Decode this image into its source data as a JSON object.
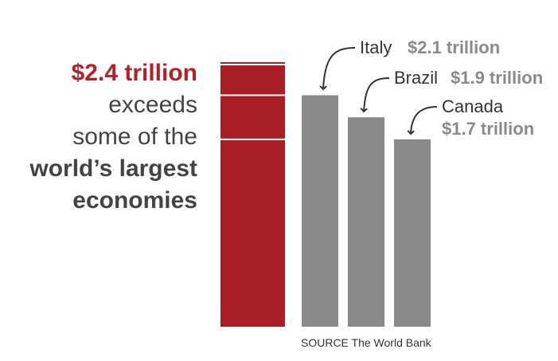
{
  "headline": {
    "line1": "$2.4 trillion",
    "line2": "exceeds",
    "line3": "some of the",
    "line4": "world’s largest",
    "line5": "economies"
  },
  "source": "SOURCE The World Bank",
  "colors": {
    "highlight": "#a81e24",
    "bars": "#8a8a8a",
    "accent_text": "#b0232a",
    "value_text": "#8a8a8a"
  },
  "chart_data": {
    "type": "bar",
    "categories": [
      "",
      "Italy",
      "Brazil",
      "Canada"
    ],
    "values": [
      2.4,
      2.1,
      1.9,
      1.7
    ],
    "unit": "trillion",
    "labels": [
      {
        "name": "",
        "value": ""
      },
      {
        "name": "Italy",
        "value": "$2.1 trillion"
      },
      {
        "name": "Brazil",
        "value": "$1.9 trillion"
      },
      {
        "name": "Canada",
        "value": "$1.7 trillion"
      }
    ],
    "highlight_segments": [
      2.1,
      1.7
    ],
    "ylim": [
      0,
      2.4
    ],
    "grid": false,
    "title": "",
    "xlabel": "",
    "ylabel": ""
  }
}
